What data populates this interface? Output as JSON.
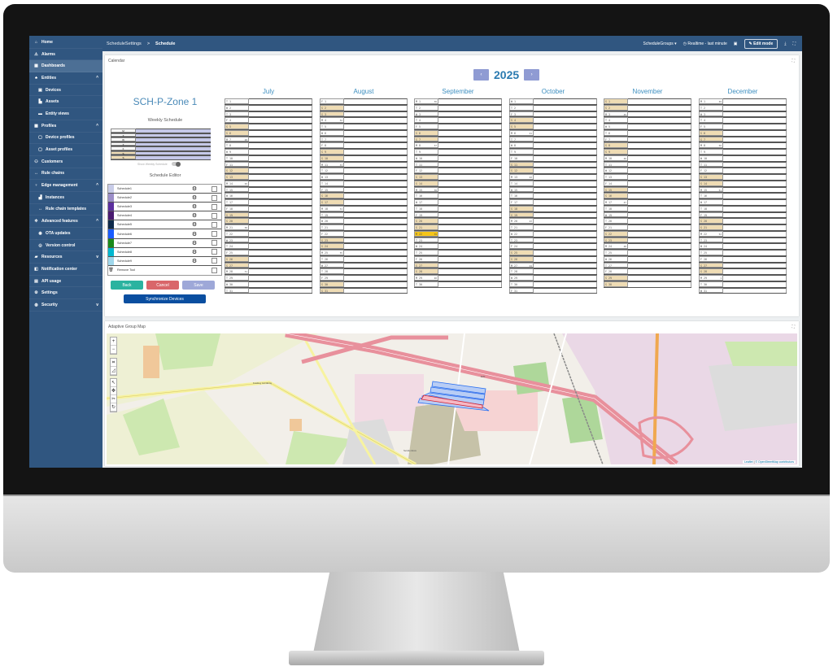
{
  "sidebar": {
    "items": [
      {
        "label": "Home",
        "icon": "home-icon",
        "glyph": "⌂"
      },
      {
        "label": "Alarms",
        "icon": "alarm-icon",
        "glyph": "⚠"
      },
      {
        "label": "Dashboards",
        "icon": "dashboard-icon",
        "glyph": "▦",
        "active": true
      },
      {
        "label": "Entities",
        "icon": "entities-icon",
        "glyph": "♣",
        "chevron": "^"
      },
      {
        "label": "Devices",
        "icon": "device-icon",
        "glyph": "▣",
        "sub": true
      },
      {
        "label": "Assets",
        "icon": "asset-icon",
        "glyph": "▙",
        "sub": true
      },
      {
        "label": "Entity views",
        "icon": "entity-view-icon",
        "glyph": "▬",
        "sub": true
      },
      {
        "label": "Profiles",
        "icon": "profiles-icon",
        "glyph": "▩",
        "chevron": "^"
      },
      {
        "label": "Device profiles",
        "icon": "device-profile-icon",
        "glyph": "▢",
        "sub": true
      },
      {
        "label": "Asset profiles",
        "icon": "asset-profile-icon",
        "glyph": "▢",
        "sub": true
      },
      {
        "label": "Customers",
        "icon": "customers-icon",
        "glyph": "⚇"
      },
      {
        "label": "Rule chains",
        "icon": "rule-chain-icon",
        "glyph": "↔"
      },
      {
        "label": "Edge management",
        "icon": "edge-icon",
        "glyph": "♆",
        "chevron": "^"
      },
      {
        "label": "Instances",
        "icon": "instances-icon",
        "glyph": "▟",
        "sub": true
      },
      {
        "label": "Rule chain templates",
        "icon": "rule-template-icon",
        "glyph": "↔",
        "sub": true
      },
      {
        "label": "Advanced features",
        "icon": "advanced-icon",
        "glyph": "✲",
        "chevron": "^"
      },
      {
        "label": "OTA updates",
        "icon": "ota-icon",
        "glyph": "◉",
        "sub": true
      },
      {
        "label": "Version control",
        "icon": "version-control-icon",
        "glyph": "◎",
        "sub": true
      },
      {
        "label": "Resources",
        "icon": "folder-icon",
        "glyph": "▰",
        "chevron": "v"
      },
      {
        "label": "Notification center",
        "icon": "notification-icon",
        "glyph": "◧"
      },
      {
        "label": "API usage",
        "icon": "api-icon",
        "glyph": "▤"
      },
      {
        "label": "Settings",
        "icon": "gear-icon",
        "glyph": "⚙"
      },
      {
        "label": "Security",
        "icon": "security-icon",
        "glyph": "◍",
        "chevron": "v"
      }
    ]
  },
  "topbar": {
    "crumb1": "ScheduleSettings",
    "sep": ">",
    "crumb2": "Schedule",
    "groups": "ScheduleGroups ▾",
    "realtime": "Realtime - last minute",
    "edit": "Edit mode"
  },
  "calendar": {
    "title": "Calendar",
    "year": "2025",
    "prev": "‹",
    "next": "›",
    "zone": "SCH-P-Zone 1",
    "weekly_label": "Weekly Schedule",
    "weekdays": [
      "M",
      "T",
      "W",
      "T",
      "F",
      "S",
      "S"
    ],
    "toggle_label": "Show Weekly Schedule",
    "editor_label": "Schedule Editor",
    "schedules": [
      {
        "name": "Schedule1",
        "color": "#c8cce8"
      },
      {
        "name": "Schedule2",
        "color": "#9b8ec8"
      },
      {
        "name": "Schedule3",
        "color": "#5b2e9e"
      },
      {
        "name": "Schedule4",
        "color": "#4a1a70"
      },
      {
        "name": "Schedule5",
        "color": "#0e2a4a"
      },
      {
        "name": "Schedule6",
        "color": "#1a5cff"
      },
      {
        "name": "Schedule7",
        "color": "#1a8a1a"
      },
      {
        "name": "Schedule8",
        "color": "#00b8d0"
      },
      {
        "name": "Schedule9",
        "color": "#a0d8ec"
      }
    ],
    "remove_tool": "Remove Tool",
    "buttons": {
      "back": "Back",
      "cancel": "Cancel",
      "save": "Save",
      "sync": "Synchronize Devices"
    },
    "colors": {
      "back": "#2bb3a0",
      "cancel": "#d9666a",
      "save": "#9ea8d8",
      "weekend": "#efdcb4",
      "today": "#f5c518"
    },
    "today": {
      "month": "September",
      "day": 22
    },
    "months": [
      {
        "name": "July",
        "weeks": {
          "7": "28",
          "14": "29",
          "21": "30",
          "28": "31"
        },
        "days": [
          "T 1",
          "W 2",
          "T 3",
          "F 4",
          "S 5",
          "S 6",
          "M 7",
          "T 8",
          "W 9",
          "T 10",
          "F 11",
          "S 12",
          "S 13",
          "M 14",
          "T 15",
          "W 16",
          "T 17",
          "F 18",
          "S 19",
          "S 20",
          "M 21",
          "T 22",
          "W 23",
          "T 24",
          "F 25",
          "S 26",
          "S 27",
          "M 28",
          "T 29",
          "W 30",
          "T 31"
        ]
      },
      {
        "name": "August",
        "weeks": {
          "4": "32",
          "11": "33",
          "18": "34",
          "25": "35"
        },
        "days": [
          "F 1",
          "S 2",
          "S 3",
          "M 4",
          "T 5",
          "W 6",
          "T 7",
          "F 8",
          "S 9",
          "S 10",
          "M 11",
          "T 12",
          "W 13",
          "T 14",
          "F 15",
          "S 16",
          "S 17",
          "M 18",
          "T 19",
          "W 20",
          "T 21",
          "F 22",
          "S 23",
          "S 24",
          "M 25",
          "T 26",
          "W 27",
          "T 28",
          "F 29",
          "S 30",
          "S 31"
        ]
      },
      {
        "name": "September",
        "weeks": {
          "1": "36",
          "8": "37",
          "15": "38",
          "22": "39",
          "29": "40"
        },
        "days": [
          "M 1",
          "T 2",
          "W 3",
          "T 4",
          "F 5",
          "S 6",
          "S 7",
          "M 8",
          "T 9",
          "W 10",
          "T 11",
          "F 12",
          "S 13",
          "S 14",
          "M 15",
          "T 16",
          "W 17",
          "T 18",
          "F 19",
          "S 20",
          "S 21",
          "M 22",
          "T 23",
          "W 24",
          "T 25",
          "F 26",
          "S 27",
          "S 28",
          "M 29",
          "T 30"
        ]
      },
      {
        "name": "October",
        "weeks": {
          "6": "41",
          "13": "42",
          "20": "43",
          "27": "44"
        },
        "days": [
          "W 1",
          "T 2",
          "F 3",
          "S 4",
          "S 5",
          "M 6",
          "T 7",
          "W 8",
          "T 9",
          "F 10",
          "S 11",
          "S 12",
          "M 13",
          "T 14",
          "W 15",
          "T 16",
          "F 17",
          "S 18",
          "S 19",
          "M 20",
          "T 21",
          "W 22",
          "T 23",
          "F 24",
          "S 25",
          "S 26",
          "M 27",
          "T 28",
          "W 29",
          "T 30",
          "F 31"
        ]
      },
      {
        "name": "November",
        "weeks": {
          "3": "45",
          "10": "46",
          "17": "47",
          "24": "48"
        },
        "days": [
          "S 1",
          "S 2",
          "M 3",
          "T 4",
          "W 5",
          "T 6",
          "F 7",
          "S 8",
          "S 9",
          "M 10",
          "T 11",
          "W 12",
          "T 13",
          "F 14",
          "S 15",
          "S 16",
          "M 17",
          "T 18",
          "W 19",
          "T 20",
          "F 21",
          "S 22",
          "S 23",
          "M 24",
          "T 25",
          "W 26",
          "T 27",
          "F 28",
          "S 29",
          "S 30"
        ]
      },
      {
        "name": "December",
        "weeks": {
          "1": "49",
          "8": "50",
          "15": "51",
          "22": "52",
          "29": "1"
        },
        "days": [
          "M 1",
          "T 2",
          "W 3",
          "T 4",
          "F 5",
          "S 6",
          "S 7",
          "M 8",
          "T 9",
          "W 10",
          "T 11",
          "F 12",
          "S 13",
          "S 14",
          "M 15",
          "T 16",
          "W 17",
          "T 18",
          "F 19",
          "S 20",
          "S 21",
          "M 22",
          "T 23",
          "W 24",
          "T 25",
          "F 26",
          "S 27",
          "S 28",
          "M 29",
          "T 30",
          "W 31"
        ]
      }
    ]
  },
  "map": {
    "title": "Adaptive Group Map",
    "zoom_in": "+",
    "zoom_out": "−",
    "attribution_leaflet": "Leaflet",
    "attribution_osm": "© OpenStreetMap contributors",
    "place": "Sønderskov",
    "road": "Kolding Landevej",
    "highway": "E20"
  }
}
